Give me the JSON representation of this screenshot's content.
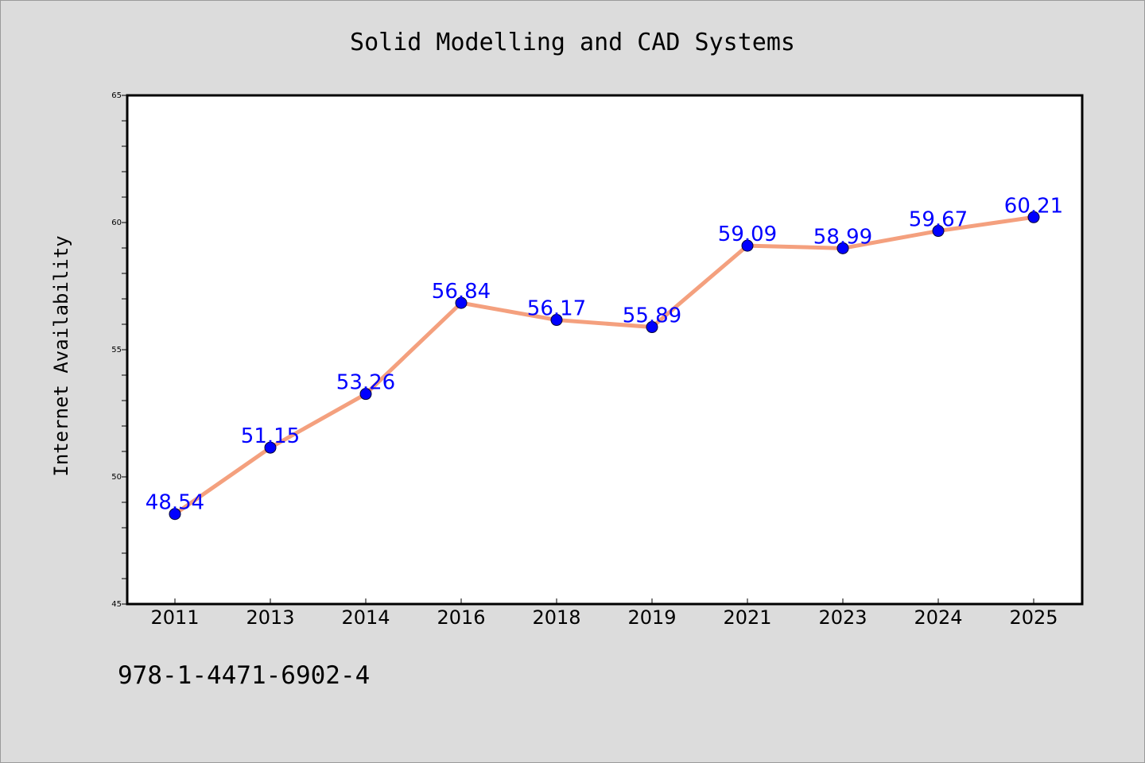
{
  "chart_data": {
    "type": "line",
    "title": "Solid Modelling and CAD Systems",
    "xlabel": "",
    "ylabel": "Internet Availability",
    "categories": [
      "2011",
      "2013",
      "2014",
      "2016",
      "2018",
      "2019",
      "2021",
      "2023",
      "2024",
      "2025"
    ],
    "series": [
      {
        "values": [
          48.54,
          51.15,
          53.26,
          56.84,
          56.17,
          55.89,
          59.09,
          58.99,
          59.67,
          60.21
        ],
        "labels": [
          "48.54",
          "51.15",
          "53.26",
          "56.84",
          "56.17",
          "55.89",
          "59.09",
          "58.99",
          "59.67",
          "60.21"
        ],
        "line_color": "#f4a07e",
        "marker_color": "#0000ff"
      }
    ],
    "ylim": [
      45,
      65
    ],
    "yticks": [
      "45",
      "50",
      "55",
      "60",
      "65"
    ],
    "grid": false,
    "legend": "none",
    "label_color": "#0000ff"
  },
  "footer": {
    "text": "978-1-4471-6902-4"
  }
}
